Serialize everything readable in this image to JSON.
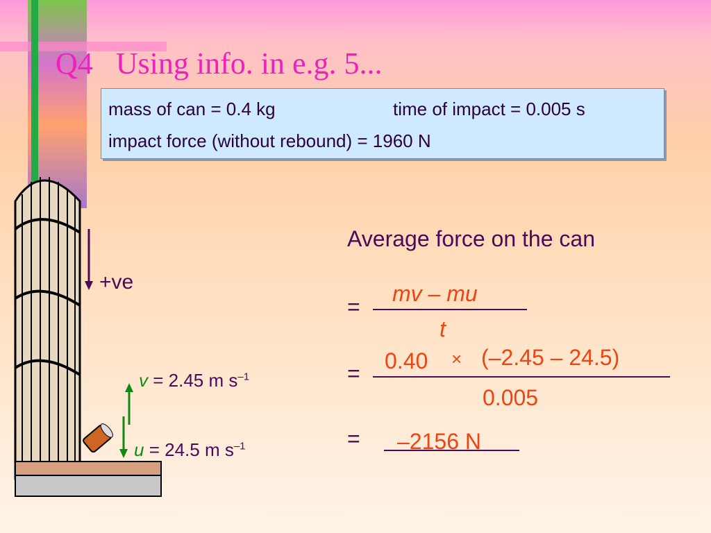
{
  "title": "Q4   Using info. in e.g. 5...",
  "given": {
    "mass": "mass of can = 0.4 kg",
    "time": "time of impact = 0.005 s",
    "force": "impact force (without rebound) = 1960 N"
  },
  "direction": "+ve",
  "velocities": {
    "v_symbol": "v",
    "v_value": "= 2.45 m s",
    "v_exp": "–1",
    "u_symbol": "u",
    "u_value": "= 24.5 m s",
    "u_exp": "–1"
  },
  "solution": {
    "heading": "Average force on the can",
    "eq1": "=",
    "numerator1": "mv – mu",
    "denominator1": "t",
    "eq2": "=",
    "factor": "0.40",
    "times": "×",
    "numerator2": "(–2.45 – 24.5)",
    "denominator2": "0.005",
    "eq3": "=",
    "result": "–2156 N"
  }
}
